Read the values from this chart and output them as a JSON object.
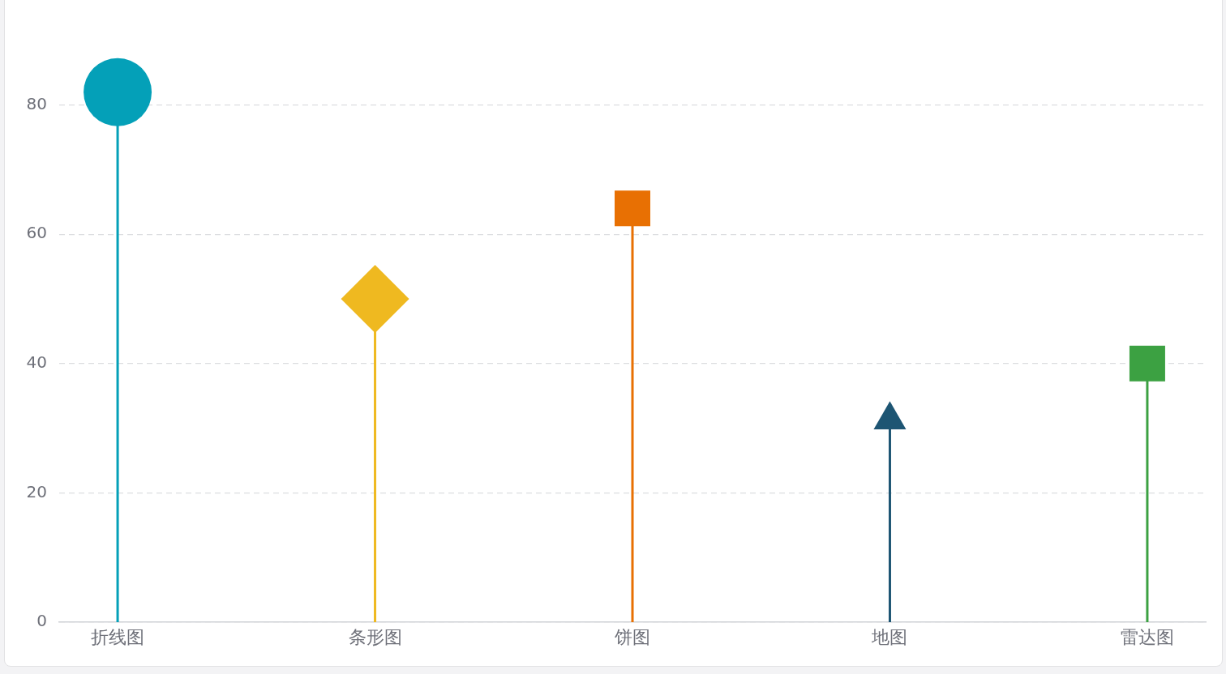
{
  "chart_data": {
    "type": "lollipop",
    "categories": [
      "折线图",
      "条形图",
      "饼图",
      "地图",
      "雷达图"
    ],
    "series": [
      {
        "color": "#04a0b8",
        "marker": "circle",
        "values": [
          82,
          null,
          null,
          null,
          null
        ]
      },
      {
        "color": "#efb920",
        "marker": "diamond",
        "values": [
          null,
          50,
          null,
          null,
          null
        ]
      },
      {
        "color": "#e87003",
        "marker": "square",
        "values": [
          null,
          null,
          64,
          null,
          null
        ]
      },
      {
        "color": "#1d5573",
        "marker": "triangle",
        "values": [
          null,
          null,
          null,
          32,
          null
        ]
      },
      {
        "color": "#3ca142",
        "marker": "square",
        "values": [
          null,
          null,
          null,
          null,
          40
        ]
      }
    ],
    "ylim": [
      0,
      96
    ],
    "yticks": [
      0,
      20,
      40,
      60,
      80
    ],
    "grid": "y"
  }
}
